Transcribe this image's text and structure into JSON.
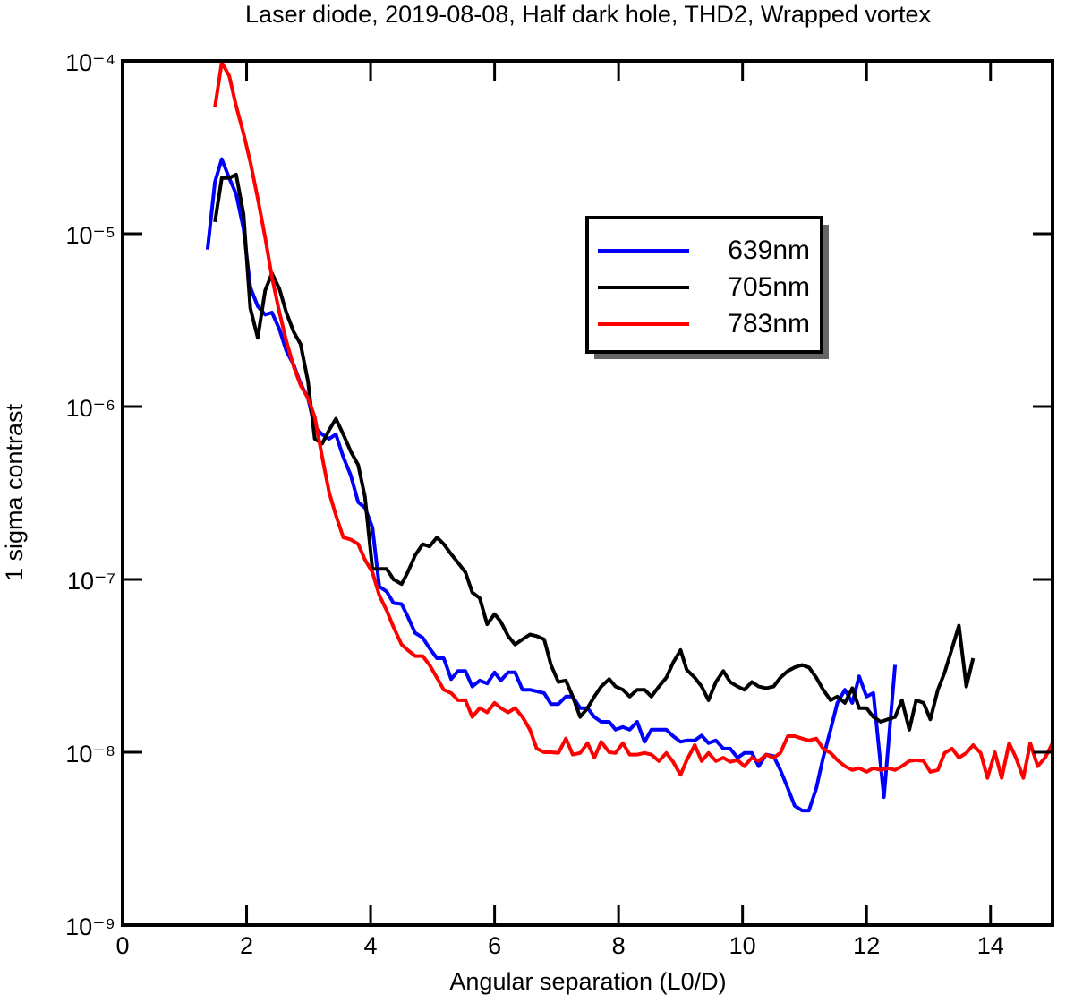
{
  "chart_data": {
    "type": "line",
    "title": "Laser diode, 2019-08-08, Half dark hole, THD2, Wrapped vortex",
    "x_label": "Angular separation (L0/D)",
    "y_label": "1 sigma contrast",
    "xlim": [
      0,
      15
    ],
    "xticks": [
      0,
      2,
      4,
      6,
      8,
      10,
      12,
      14
    ],
    "ylim": [
      1e-09,
      0.0001
    ],
    "yscale": "log",
    "yticks": [
      {
        "value": 1e-09,
        "label": "10⁻⁹"
      },
      {
        "value": 1e-08,
        "label": "10⁻⁸"
      },
      {
        "value": 1e-07,
        "label": "10⁻⁷"
      },
      {
        "value": 1e-06,
        "label": "10⁻⁶"
      },
      {
        "value": 1e-05,
        "label": "10⁻⁵"
      },
      {
        "value": 0.0001,
        "label": "10⁻⁴"
      }
    ],
    "series": [
      {
        "name": "639nm",
        "color": "#0000ff",
        "x": [
          1.37,
          1.49,
          1.6,
          1.72,
          1.83,
          1.95,
          2.06,
          2.18,
          2.3,
          2.41,
          2.53,
          2.64,
          2.76,
          2.87,
          2.99,
          3.1,
          3.22,
          3.33,
          3.44,
          3.56,
          3.68,
          3.8,
          3.91,
          4.03,
          4.14,
          4.26,
          4.37,
          4.5,
          4.6,
          4.72,
          4.84,
          4.95,
          5.07,
          5.18,
          5.3,
          5.41,
          5.53,
          5.64,
          5.76,
          5.88,
          6.0,
          6.1,
          6.22,
          6.33,
          6.45,
          6.57,
          6.8,
          6.91,
          7.03,
          7.15,
          7.26,
          7.38,
          7.5,
          7.61,
          7.72,
          7.85,
          7.95,
          8.07,
          8.18,
          8.3,
          8.42,
          8.53,
          8.65,
          8.77,
          8.88,
          9.0,
          9.1,
          9.23,
          9.34,
          9.45,
          9.57,
          9.69,
          9.8,
          9.92,
          10.03,
          10.15,
          10.26,
          10.38,
          10.5,
          10.61,
          10.73,
          10.84,
          10.96,
          11.07,
          11.19,
          11.3,
          11.42,
          11.53,
          11.65,
          11.77,
          11.88,
          12.0,
          12.11,
          12.28,
          12.46
        ],
        "values": [
          8.1e-06,
          2e-05,
          2.7e-05,
          2.1e-05,
          1.7e-05,
          1.07e-05,
          4.9e-06,
          3.8e-06,
          3.4e-06,
          3.5e-06,
          2.8e-06,
          2.1e-06,
          1.74e-06,
          1.36e-06,
          1.12e-06,
          7.6e-07,
          6.9e-07,
          6.5e-07,
          6.9e-07,
          5.1e-07,
          4e-07,
          2.8e-07,
          2.6e-07,
          2e-07,
          9.1e-08,
          8.5e-08,
          7.3e-08,
          7.2e-08,
          6.1e-08,
          4.9e-08,
          4.6e-08,
          4e-08,
          3.5e-08,
          3.5e-08,
          2.65e-08,
          2.95e-08,
          2.95e-08,
          2.4e-08,
          2.6e-08,
          2.5e-08,
          2.9e-08,
          2.6e-08,
          2.9e-08,
          2.9e-08,
          2.3e-08,
          2.3e-08,
          2.2e-08,
          1.9e-08,
          1.9e-08,
          2.1e-08,
          2.1e-08,
          1.8e-08,
          1.8e-08,
          1.6e-08,
          1.5e-08,
          1.5e-08,
          1.35e-08,
          1.4e-08,
          1.35e-08,
          1.5e-08,
          1.15e-08,
          1.35e-08,
          1.35e-08,
          1.35e-08,
          1.24e-08,
          1.15e-08,
          1.17e-08,
          1.17e-08,
          1.25e-08,
          1.13e-08,
          1.17e-08,
          1.05e-08,
          1.05e-08,
          9.3e-09,
          9.9e-09,
          9.9e-09,
          8.3e-09,
          9.7e-09,
          9.5e-09,
          7.9e-09,
          6.2e-09,
          4.9e-09,
          4.6e-09,
          4.6e-09,
          6.2e-09,
          9.3e-09,
          1.35e-08,
          1.93e-08,
          2.3e-08,
          1.93e-08,
          2.75e-08,
          2.1e-08,
          2.2e-08,
          5.5e-09,
          3.2e-08
        ]
      },
      {
        "name": "705nm",
        "color": "#000000",
        "x": [
          1.49,
          1.6,
          1.72,
          1.83,
          1.95,
          2.06,
          2.18,
          2.3,
          2.41,
          2.53,
          2.64,
          2.76,
          2.87,
          2.99,
          3.1,
          3.22,
          3.33,
          3.44,
          3.56,
          3.68,
          3.8,
          3.91,
          4.03,
          4.14,
          4.26,
          4.37,
          4.5,
          4.6,
          4.72,
          4.84,
          4.95,
          5.07,
          5.18,
          5.3,
          5.41,
          5.53,
          5.64,
          5.76,
          5.88,
          6.0,
          6.1,
          6.22,
          6.33,
          6.45,
          6.57,
          6.68,
          6.8,
          6.91,
          7.03,
          7.15,
          7.26,
          7.38,
          7.5,
          7.61,
          7.72,
          7.85,
          7.95,
          8.07,
          8.18,
          8.3,
          8.42,
          8.53,
          8.65,
          8.77,
          8.88,
          9.0,
          9.1,
          9.23,
          9.34,
          9.45,
          9.57,
          9.69,
          9.8,
          9.92,
          10.03,
          10.15,
          10.26,
          10.38,
          10.5,
          10.61,
          10.73,
          10.84,
          10.96,
          11.07,
          11.19,
          11.3,
          11.42,
          11.53,
          11.65,
          11.77,
          11.88,
          12.0,
          12.11,
          12.23,
          12.34,
          12.46,
          12.57,
          12.69,
          12.8,
          12.92,
          13.03,
          13.15,
          13.26,
          13.38,
          13.49,
          13.61,
          13.72
        ],
        "values": [
          1.17e-05,
          2.1e-05,
          2.1e-05,
          2.2e-05,
          1.3e-05,
          3.7e-06,
          2.5e-06,
          4.7e-06,
          5.9e-06,
          4.8e-06,
          3.5e-06,
          2.7e-06,
          2.3e-06,
          1.4e-06,
          6.5e-07,
          6.1e-07,
          7.3e-07,
          8.5e-07,
          6.9e-07,
          5.5e-07,
          4.6e-07,
          3e-07,
          1.15e-07,
          1.15e-07,
          1.15e-07,
          1e-07,
          9.4e-08,
          1.1e-07,
          1.38e-07,
          1.6e-07,
          1.55e-07,
          1.75e-07,
          1.6e-07,
          1.4e-07,
          1.25e-07,
          1.1e-07,
          8.4e-08,
          7.8e-08,
          5.5e-08,
          6.3e-08,
          5.7e-08,
          4.7e-08,
          4.2e-08,
          4.5e-08,
          4.8e-08,
          4.7e-08,
          4.5e-08,
          3.2e-08,
          2.55e-08,
          2.6e-08,
          2.1e-08,
          1.6e-08,
          1.8e-08,
          2.1e-08,
          2.4e-08,
          2.65e-08,
          2.4e-08,
          2.3e-08,
          2.1e-08,
          2.3e-08,
          2.3e-08,
          2.1e-08,
          2.4e-08,
          2.7e-08,
          3.3e-08,
          3.9e-08,
          3e-08,
          2.7e-08,
          2.4e-08,
          2e-08,
          2.55e-08,
          2.95e-08,
          2.55e-08,
          2.4e-08,
          2.3e-08,
          2.55e-08,
          2.4e-08,
          2.35e-08,
          2.4e-08,
          2.7e-08,
          2.95e-08,
          3.1e-08,
          3.2e-08,
          3.1e-08,
          2.7e-08,
          2.3e-08,
          2e-08,
          2.1e-08,
          1.93e-08,
          2.35e-08,
          1.8e-08,
          1.8e-08,
          1.6e-08,
          1.5e-08,
          1.55e-08,
          1.6e-08,
          2e-08,
          1.35e-08,
          2e-08,
          1.93e-08,
          1.55e-08,
          2.3e-08,
          2.9e-08,
          4e-08,
          5.4e-08,
          2.4e-08,
          3.5e-08
        ]
      },
      {
        "name": "783nm",
        "color": "#ff0000",
        "x": [
          1.49,
          1.6,
          1.72,
          1.83,
          1.95,
          2.06,
          2.18,
          2.3,
          2.41,
          2.53,
          2.64,
          2.76,
          2.87,
          2.99,
          3.1,
          3.22,
          3.33,
          3.44,
          3.56,
          3.68,
          3.8,
          3.91,
          4.03,
          4.14,
          4.26,
          4.37,
          4.5,
          4.6,
          4.72,
          4.84,
          4.95,
          5.07,
          5.18,
          5.3,
          5.41,
          5.53,
          5.64,
          5.76,
          5.88,
          6.0,
          6.1,
          6.22,
          6.33,
          6.45,
          6.57,
          6.68,
          6.8,
          6.91,
          7.03,
          7.15,
          7.26,
          7.38,
          7.5,
          7.61,
          7.72,
          7.85,
          7.95,
          8.07,
          8.18,
          8.3,
          8.42,
          8.53,
          8.65,
          8.77,
          8.88,
          9.0,
          9.1,
          9.23,
          9.34,
          9.45,
          9.57,
          9.69,
          9.8,
          9.92,
          10.03,
          10.15,
          10.26,
          10.38,
          10.5,
          10.61,
          10.73,
          10.84,
          10.96,
          11.07,
          11.19,
          11.3,
          11.42,
          11.53,
          11.65,
          11.77,
          11.88,
          12.0,
          12.11,
          12.23,
          12.34,
          12.46,
          12.57,
          12.69,
          12.8,
          12.92,
          13.03,
          13.15,
          13.26,
          13.38,
          13.49,
          13.61,
          13.72,
          13.84,
          13.95,
          14.07,
          14.18,
          14.3,
          14.41,
          14.53,
          14.64,
          14.76,
          14.88,
          15.0
        ],
        "values": [
          5.4e-05,
          9.8e-05,
          8.2e-05,
          5.5e-05,
          3.8e-05,
          2.6e-05,
          1.6e-05,
          9.5e-06,
          5.6e-06,
          3.5e-06,
          2.4e-06,
          1.7e-06,
          1.33e-06,
          1.12e-06,
          8.7e-07,
          5.1e-07,
          3.2e-07,
          2.35e-07,
          1.75e-07,
          1.7e-07,
          1.6e-07,
          1.3e-07,
          1.1e-07,
          8.1e-08,
          6.6e-08,
          5.3e-08,
          4.2e-08,
          3.9e-08,
          3.6e-08,
          3.6e-08,
          3.2e-08,
          2.7e-08,
          2.3e-08,
          2.2e-08,
          2e-08,
          2e-08,
          1.6e-08,
          1.8e-08,
          1.7e-08,
          1.93e-08,
          1.8e-08,
          1.7e-08,
          1.8e-08,
          1.6e-08,
          1.35e-08,
          1.05e-08,
          1e-08,
          1e-08,
          9.9e-09,
          1.2e-08,
          9.7e-09,
          9.9e-09,
          1.13e-08,
          9.3e-09,
          1.15e-08,
          1e-08,
          9.9e-09,
          1.13e-08,
          9.7e-09,
          9.7e-09,
          9.9e-09,
          9.7e-09,
          8.9e-09,
          9.9e-09,
          8.8e-09,
          7.4e-09,
          9e-09,
          1.1e-08,
          8.9e-09,
          9.9e-09,
          8.9e-09,
          9.3e-09,
          8.8e-09,
          9e-09,
          8.3e-09,
          9.3e-09,
          8.9e-09,
          9.7e-09,
          9.3e-09,
          9.9e-09,
          1.24e-08,
          1.24e-08,
          1.2e-08,
          1.17e-08,
          1.2e-08,
          1.05e-08,
          9.9e-09,
          9e-09,
          8.3e-09,
          7.9e-09,
          8.1e-09,
          7.7e-09,
          8.1e-09,
          7.9e-09,
          8.1e-09,
          7.9e-09,
          8.3e-09,
          8.9e-09,
          9e-09,
          8.9e-09,
          7.7e-09,
          7.9e-09,
          9.9e-09,
          1.05e-08,
          9.3e-09,
          9.9e-09,
          1.1e-08,
          9.9e-09,
          7.1e-09,
          1e-08,
          7.1e-09,
          1.13e-08,
          9.3e-09,
          7.1e-09,
          1.13e-08,
          8.3e-09,
          9.3e-09,
          1.13e-08
        ]
      }
    ]
  }
}
